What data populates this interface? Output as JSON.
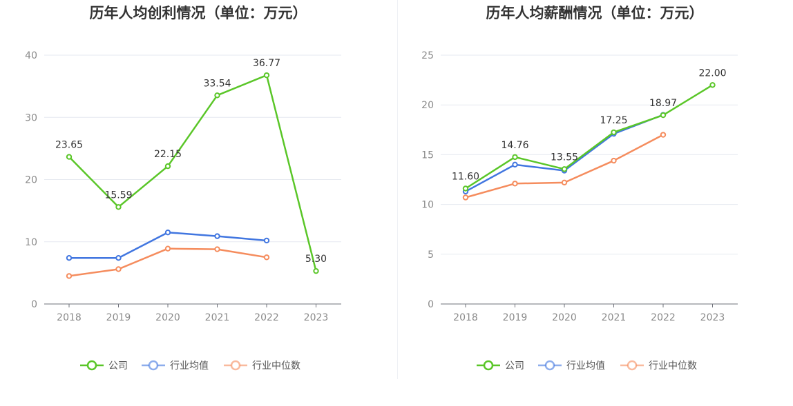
{
  "chart_data": [
    {
      "type": "line",
      "title": "历年人均创利情况（单位：万元）",
      "categories": [
        "2018",
        "2019",
        "2020",
        "2021",
        "2022",
        "2023"
      ],
      "ylim": [
        0,
        40
      ],
      "yticks": [
        "0",
        "10",
        "20",
        "30",
        "40"
      ],
      "grid": true,
      "legend": "bottom",
      "series": [
        {
          "name": "公司",
          "color": "#5ac628",
          "values": [
            23.65,
            15.59,
            22.15,
            33.54,
            36.77,
            5.3
          ],
          "labels": [
            "23.65",
            "15.59",
            "22.15",
            "33.54",
            "36.77",
            "5.30"
          ]
        },
        {
          "name": "行业均值",
          "color": "#4176e0",
          "values": [
            7.4,
            7.4,
            11.5,
            10.9,
            10.2,
            null
          ]
        },
        {
          "name": "行业中位数",
          "color": "#f58c5d",
          "values": [
            4.5,
            5.6,
            8.9,
            8.8,
            7.5,
            null
          ]
        }
      ]
    },
    {
      "type": "line",
      "title": "历年人均薪酬情况（单位：万元）",
      "categories": [
        "2018",
        "2019",
        "2020",
        "2021",
        "2022",
        "2023"
      ],
      "ylim": [
        0,
        25
      ],
      "yticks": [
        "0",
        "5",
        "10",
        "15",
        "20",
        "25"
      ],
      "grid": true,
      "legend": "bottom",
      "series": [
        {
          "name": "公司",
          "color": "#5ac628",
          "values": [
            11.6,
            14.76,
            13.55,
            17.25,
            18.97,
            22.0
          ],
          "labels": [
            "11.60",
            "14.76",
            "13.55",
            "17.25",
            "18.97",
            "22.00"
          ]
        },
        {
          "name": "行业均值",
          "color": "#4176e0",
          "values": [
            11.3,
            14.0,
            13.4,
            17.1,
            19.0,
            null
          ]
        },
        {
          "name": "行业中位数",
          "color": "#f58c5d",
          "values": [
            10.7,
            12.1,
            12.2,
            14.4,
            17.0,
            null
          ]
        }
      ]
    }
  ]
}
